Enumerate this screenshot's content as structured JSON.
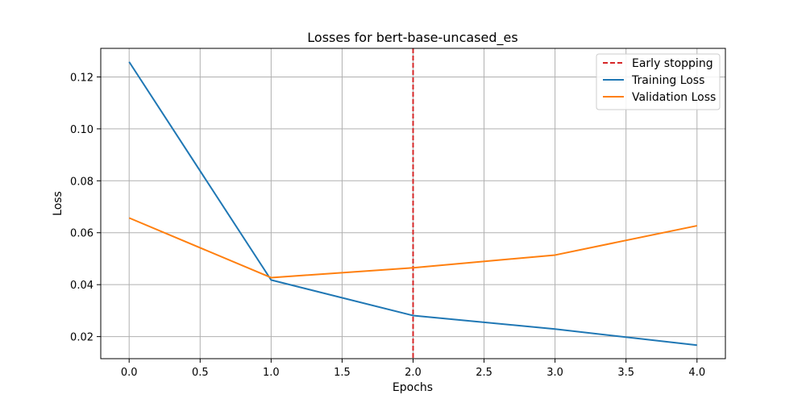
{
  "chart_data": {
    "type": "line",
    "title": "Losses for bert-base-uncased_es",
    "xlabel": "Epochs",
    "ylabel": "Loss",
    "xlim": [
      -0.2,
      4.2
    ],
    "ylim": [
      0.0115,
      0.131
    ],
    "xticks": [
      0.0,
      0.5,
      1.0,
      1.5,
      2.0,
      2.5,
      3.0,
      3.5,
      4.0
    ],
    "xtick_labels": [
      "0.0",
      "0.5",
      "1.0",
      "1.5",
      "2.0",
      "2.5",
      "3.0",
      "3.5",
      "4.0"
    ],
    "yticks": [
      0.02,
      0.04,
      0.06,
      0.08,
      0.1,
      0.12
    ],
    "ytick_labels": [
      "0.02",
      "0.04",
      "0.06",
      "0.08",
      "0.10",
      "0.12"
    ],
    "grid": true,
    "legend_position": "top-right",
    "x": [
      0,
      1,
      2,
      3,
      4
    ],
    "series": [
      {
        "name": "Training Loss",
        "color": "#1f77b4",
        "values": [
          0.1258,
          0.0418,
          0.0281,
          0.0229,
          0.0167
        ]
      },
      {
        "name": "Validation Loss",
        "color": "#ff7f0e",
        "values": [
          0.0657,
          0.0427,
          0.0465,
          0.0514,
          0.0627
        ]
      }
    ],
    "vlines": [
      {
        "name": "Early stopping",
        "x": 2.0,
        "color": "#d62728",
        "style": "dashed"
      }
    ]
  }
}
